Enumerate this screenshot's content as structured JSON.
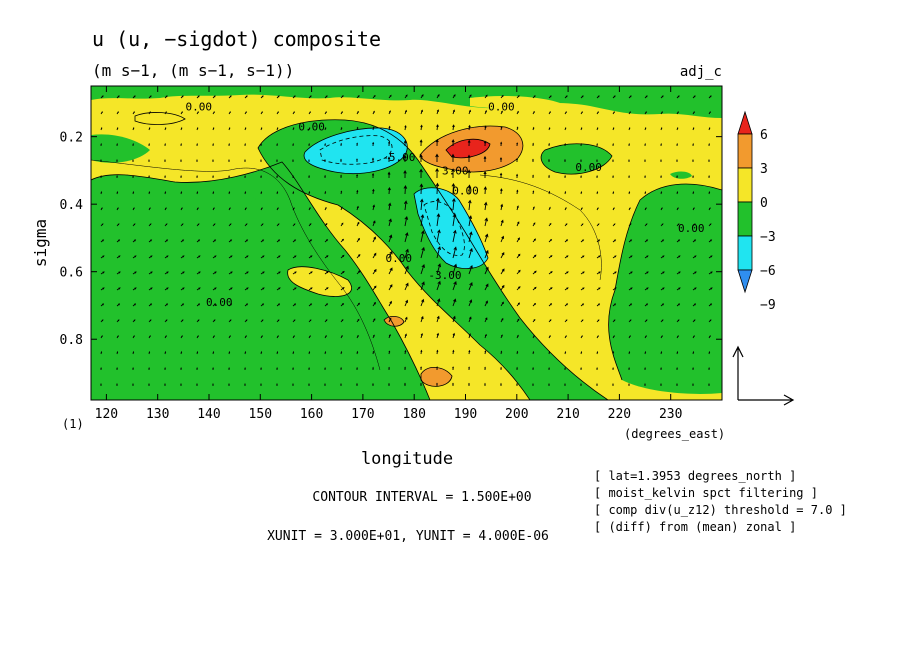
{
  "chart_data": {
    "type": "heatmap",
    "title": "u (u, −sigdot) composite",
    "subtitle": "(m s−1, (m s−1, s−1))",
    "tag": "adj_c",
    "xlabel": "longitude",
    "ylabel": "sigma",
    "x_units_label": "(degrees_east)",
    "panel_label": "(1)",
    "xlim": [
      117,
      240
    ],
    "ylim": [
      0.05,
      0.98
    ],
    "y_inverted": true,
    "xticks": [
      120,
      130,
      140,
      150,
      160,
      170,
      180,
      190,
      200,
      210,
      220,
      230
    ],
    "yticks": [
      0.2,
      0.4,
      0.6,
      0.8
    ],
    "colorbar": {
      "labels": [
        "6",
        "3",
        "0",
        "−3",
        "−6",
        "−9"
      ],
      "levels": [
        9,
        6,
        3,
        0,
        -3,
        -6,
        -9,
        -12
      ],
      "colors": [
        "#e8241c",
        "#f29a2e",
        "#f5e628",
        "#22c12c",
        "#20e4f0",
        "#2f8ef0"
      ]
    },
    "contour_interval_text": "CONTOUR INTERVAL = 1.500E+00",
    "unit_text": "XUNIT = 3.000E+01, YUNIT = 4.000E-06",
    "contour_labels": [
      {
        "text": "0.00",
        "x": 138,
        "y": 0.11
      },
      {
        "text": "0.00",
        "x": 160,
        "y": 0.17
      },
      {
        "text": "0.00",
        "x": 197,
        "y": 0.11
      },
      {
        "text": "-5.00",
        "x": 177,
        "y": 0.26
      },
      {
        "text": "3.00",
        "x": 188,
        "y": 0.3
      },
      {
        "text": "0.00",
        "x": 190,
        "y": 0.36
      },
      {
        "text": "0.00",
        "x": 214,
        "y": 0.29
      },
      {
        "text": "0.00",
        "x": 234,
        "y": 0.47
      },
      {
        "text": "0.00",
        "x": 177,
        "y": 0.56
      },
      {
        "text": "-3.00",
        "x": 186,
        "y": 0.61
      },
      {
        "text": "0.00",
        "x": 142,
        "y": 0.69
      }
    ],
    "grid": false,
    "legend": "colorbar-right",
    "quiver": true,
    "reference_vector": {
      "xunit": "3.000E+01",
      "yunit": "4.000E-06"
    }
  },
  "info_lines": [
    "[ lat=1.3953 degrees_north ]",
    "[ moist_kelvin spct filtering ]",
    "[ comp div(u_z12) threshold = 7.0 ]",
    "[ (diff) from (mean) zonal ]"
  ]
}
